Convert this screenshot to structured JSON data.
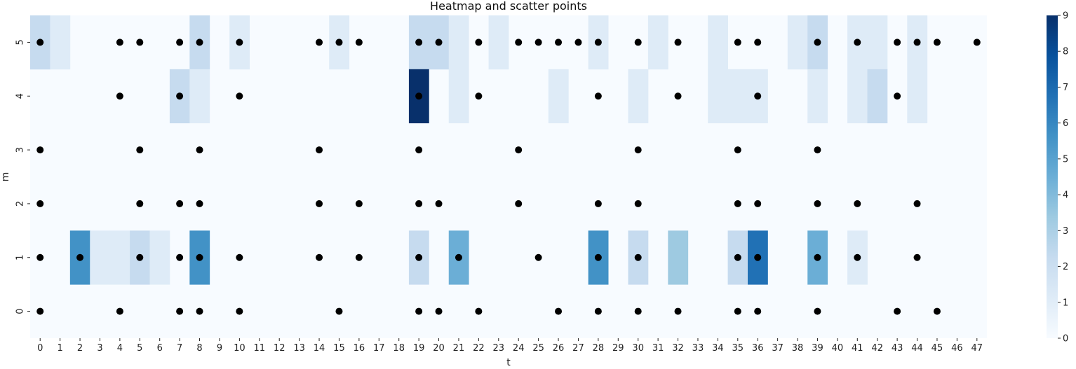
{
  "chart_data": {
    "type": "heatmap",
    "title": "Heatmap and scatter points",
    "xlabel": "t",
    "ylabel": "m",
    "x_ticks": [
      0,
      1,
      2,
      3,
      4,
      5,
      6,
      7,
      8,
      9,
      10,
      11,
      12,
      13,
      14,
      15,
      16,
      17,
      18,
      19,
      20,
      21,
      22,
      23,
      24,
      25,
      26,
      27,
      28,
      29,
      30,
      31,
      32,
      33,
      34,
      35,
      36,
      37,
      38,
      39,
      40,
      41,
      42,
      43,
      44,
      45,
      46,
      47
    ],
    "y_ticks": [
      0,
      1,
      2,
      3,
      4,
      5
    ],
    "colorscale": {
      "min": 0,
      "max": 9,
      "ticks": [
        0,
        1,
        2,
        3,
        4,
        5,
        6,
        7,
        8,
        9
      ],
      "colors": [
        "#f7fbff",
        "#deebf7",
        "#c6dbef",
        "#9ecae1",
        "#6baed6",
        "#4292c6",
        "#2171b5",
        "#08519c",
        "#08306b"
      ]
    },
    "heatmap_cells": [
      {
        "t": 0,
        "m": 5,
        "v": 2
      },
      {
        "t": 1,
        "m": 5,
        "v": 1
      },
      {
        "t": 8,
        "m": 5,
        "v": 2
      },
      {
        "t": 10,
        "m": 5,
        "v": 1
      },
      {
        "t": 15,
        "m": 5,
        "v": 1
      },
      {
        "t": 19,
        "m": 5,
        "v": 2
      },
      {
        "t": 20,
        "m": 5,
        "v": 2
      },
      {
        "t": 21,
        "m": 5,
        "v": 1
      },
      {
        "t": 23,
        "m": 5,
        "v": 1
      },
      {
        "t": 28,
        "m": 5,
        "v": 1
      },
      {
        "t": 31,
        "m": 5,
        "v": 1
      },
      {
        "t": 34,
        "m": 5,
        "v": 1
      },
      {
        "t": 38,
        "m": 5,
        "v": 1
      },
      {
        "t": 39,
        "m": 5,
        "v": 2
      },
      {
        "t": 41,
        "m": 5,
        "v": 1
      },
      {
        "t": 42,
        "m": 5,
        "v": 1
      },
      {
        "t": 44,
        "m": 5,
        "v": 1
      },
      {
        "t": 7,
        "m": 4,
        "v": 2
      },
      {
        "t": 8,
        "m": 4,
        "v": 1
      },
      {
        "t": 19,
        "m": 4,
        "v": 9
      },
      {
        "t": 21,
        "m": 4,
        "v": 1
      },
      {
        "t": 26,
        "m": 4,
        "v": 1
      },
      {
        "t": 30,
        "m": 4,
        "v": 1
      },
      {
        "t": 34,
        "m": 4,
        "v": 1
      },
      {
        "t": 35,
        "m": 4,
        "v": 1
      },
      {
        "t": 36,
        "m": 4,
        "v": 1
      },
      {
        "t": 39,
        "m": 4,
        "v": 1
      },
      {
        "t": 41,
        "m": 4,
        "v": 1
      },
      {
        "t": 42,
        "m": 4,
        "v": 2
      },
      {
        "t": 44,
        "m": 4,
        "v": 1
      },
      {
        "t": 2,
        "m": 1,
        "v": 6
      },
      {
        "t": 3,
        "m": 1,
        "v": 1
      },
      {
        "t": 4,
        "m": 1,
        "v": 1
      },
      {
        "t": 5,
        "m": 1,
        "v": 2
      },
      {
        "t": 6,
        "m": 1,
        "v": 1
      },
      {
        "t": 8,
        "m": 1,
        "v": 6
      },
      {
        "t": 19,
        "m": 1,
        "v": 2
      },
      {
        "t": 21,
        "m": 1,
        "v": 5
      },
      {
        "t": 28,
        "m": 1,
        "v": 6
      },
      {
        "t": 30,
        "m": 1,
        "v": 2
      },
      {
        "t": 32,
        "m": 1,
        "v": 3
      },
      {
        "t": 35,
        "m": 1,
        "v": 2
      },
      {
        "t": 36,
        "m": 1,
        "v": 7
      },
      {
        "t": 39,
        "m": 1,
        "v": 5
      },
      {
        "t": 41,
        "m": 1,
        "v": 1
      }
    ],
    "scatter_points": [
      {
        "t": 0,
        "m": 5
      },
      {
        "t": 4,
        "m": 5
      },
      {
        "t": 5,
        "m": 5
      },
      {
        "t": 7,
        "m": 5
      },
      {
        "t": 8,
        "m": 5
      },
      {
        "t": 10,
        "m": 5
      },
      {
        "t": 14,
        "m": 5
      },
      {
        "t": 15,
        "m": 5
      },
      {
        "t": 16,
        "m": 5
      },
      {
        "t": 19,
        "m": 5
      },
      {
        "t": 20,
        "m": 5
      },
      {
        "t": 22,
        "m": 5
      },
      {
        "t": 24,
        "m": 5
      },
      {
        "t": 25,
        "m": 5
      },
      {
        "t": 26,
        "m": 5
      },
      {
        "t": 27,
        "m": 5
      },
      {
        "t": 28,
        "m": 5
      },
      {
        "t": 30,
        "m": 5
      },
      {
        "t": 32,
        "m": 5
      },
      {
        "t": 35,
        "m": 5
      },
      {
        "t": 36,
        "m": 5
      },
      {
        "t": 39,
        "m": 5
      },
      {
        "t": 41,
        "m": 5
      },
      {
        "t": 43,
        "m": 5
      },
      {
        "t": 44,
        "m": 5
      },
      {
        "t": 45,
        "m": 5
      },
      {
        "t": 47,
        "m": 5
      },
      {
        "t": 4,
        "m": 4
      },
      {
        "t": 7,
        "m": 4
      },
      {
        "t": 10,
        "m": 4
      },
      {
        "t": 19,
        "m": 4
      },
      {
        "t": 22,
        "m": 4
      },
      {
        "t": 28,
        "m": 4
      },
      {
        "t": 32,
        "m": 4
      },
      {
        "t": 36,
        "m": 4
      },
      {
        "t": 43,
        "m": 4
      },
      {
        "t": 0,
        "m": 3
      },
      {
        "t": 5,
        "m": 3
      },
      {
        "t": 8,
        "m": 3
      },
      {
        "t": 14,
        "m": 3
      },
      {
        "t": 19,
        "m": 3
      },
      {
        "t": 24,
        "m": 3
      },
      {
        "t": 30,
        "m": 3
      },
      {
        "t": 35,
        "m": 3
      },
      {
        "t": 39,
        "m": 3
      },
      {
        "t": 0,
        "m": 2
      },
      {
        "t": 5,
        "m": 2
      },
      {
        "t": 7,
        "m": 2
      },
      {
        "t": 8,
        "m": 2
      },
      {
        "t": 14,
        "m": 2
      },
      {
        "t": 16,
        "m": 2
      },
      {
        "t": 19,
        "m": 2
      },
      {
        "t": 20,
        "m": 2
      },
      {
        "t": 24,
        "m": 2
      },
      {
        "t": 28,
        "m": 2
      },
      {
        "t": 30,
        "m": 2
      },
      {
        "t": 35,
        "m": 2
      },
      {
        "t": 36,
        "m": 2
      },
      {
        "t": 39,
        "m": 2
      },
      {
        "t": 41,
        "m": 2
      },
      {
        "t": 44,
        "m": 2
      },
      {
        "t": 0,
        "m": 1
      },
      {
        "t": 2,
        "m": 1
      },
      {
        "t": 5,
        "m": 1
      },
      {
        "t": 7,
        "m": 1
      },
      {
        "t": 8,
        "m": 1
      },
      {
        "t": 10,
        "m": 1
      },
      {
        "t": 14,
        "m": 1
      },
      {
        "t": 16,
        "m": 1
      },
      {
        "t": 19,
        "m": 1
      },
      {
        "t": 21,
        "m": 1
      },
      {
        "t": 25,
        "m": 1
      },
      {
        "t": 28,
        "m": 1
      },
      {
        "t": 30,
        "m": 1
      },
      {
        "t": 35,
        "m": 1
      },
      {
        "t": 36,
        "m": 1
      },
      {
        "t": 39,
        "m": 1
      },
      {
        "t": 41,
        "m": 1
      },
      {
        "t": 44,
        "m": 1
      },
      {
        "t": 0,
        "m": 0
      },
      {
        "t": 4,
        "m": 0
      },
      {
        "t": 7,
        "m": 0
      },
      {
        "t": 8,
        "m": 0
      },
      {
        "t": 10,
        "m": 0
      },
      {
        "t": 15,
        "m": 0
      },
      {
        "t": 19,
        "m": 0
      },
      {
        "t": 20,
        "m": 0
      },
      {
        "t": 22,
        "m": 0
      },
      {
        "t": 26,
        "m": 0
      },
      {
        "t": 28,
        "m": 0
      },
      {
        "t": 30,
        "m": 0
      },
      {
        "t": 32,
        "m": 0
      },
      {
        "t": 35,
        "m": 0
      },
      {
        "t": 36,
        "m": 0
      },
      {
        "t": 39,
        "m": 0
      },
      {
        "t": 43,
        "m": 0
      },
      {
        "t": 45,
        "m": 0
      }
    ],
    "point_color": "#000000",
    "grid": false,
    "legend": "colorbar-right"
  }
}
